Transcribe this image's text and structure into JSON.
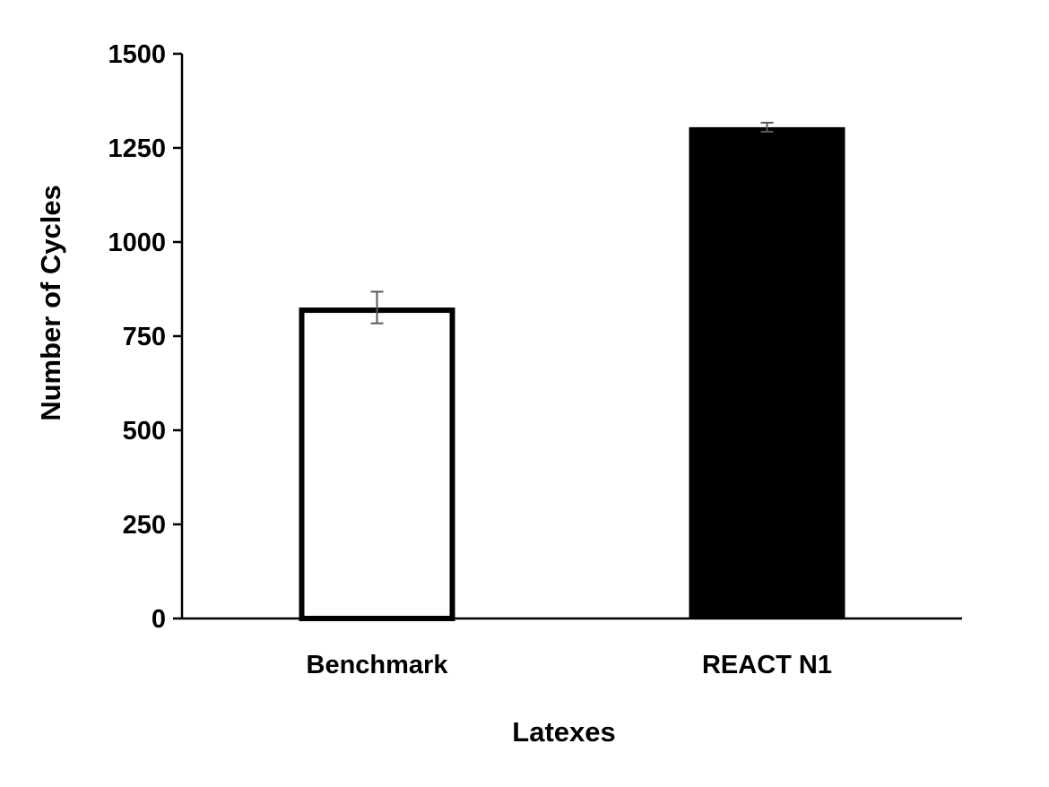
{
  "chart_data": {
    "type": "bar",
    "title": "",
    "xlabel": "Latexes",
    "ylabel": "Number of Cycles",
    "categories": [
      "Benchmark",
      "REACT N1"
    ],
    "values": [
      826,
      1305
    ],
    "errors": [
      42,
      12
    ],
    "ylim": [
      0,
      1500
    ],
    "yticks": [
      0,
      250,
      500,
      750,
      1000,
      1250,
      1500
    ],
    "ytick_labels": [
      "0",
      "250",
      "500",
      "750",
      "1000",
      "1250",
      "1500"
    ],
    "grid": false,
    "legend": "none",
    "bar_fills": [
      "#ffffff",
      "#000000"
    ],
    "bar_stroke": "#000000",
    "error_bar_color": "#595959"
  }
}
